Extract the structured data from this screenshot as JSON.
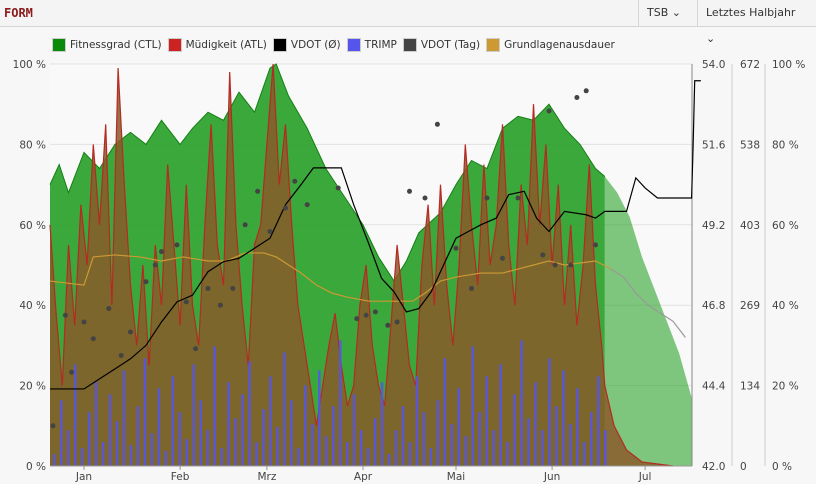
{
  "header": {
    "title": "FORM",
    "tsb_label": "TSB",
    "period_label": "Letztes Halbjahr"
  },
  "colors": {
    "ctl": "#1a9a1a",
    "atl": "#cc2222",
    "vdot_avg": "#000000",
    "trimp": "#5555ee",
    "vdot_day": "#444444",
    "ga": "#cc9933"
  },
  "chart_data": {
    "type": "area",
    "legend": [
      "Fitnessgrad (CTL)",
      "Müdigkeit (ATL)",
      "VDOT (Ø)",
      "TRIMP",
      "VDOT (Tag)",
      "Grundlagenausdauer"
    ],
    "x_unit": "day of year",
    "x_ticks": [
      {
        "label": "Jan",
        "day": 0
      },
      {
        "label": "Feb",
        "day": 31
      },
      {
        "label": "Mrz",
        "day": 59
      },
      {
        "label": "Apr",
        "day": 90
      },
      {
        "label": "Mai",
        "day": 120
      },
      {
        "label": "Jun",
        "day": 151
      },
      {
        "label": "Jul",
        "day": 181
      }
    ],
    "y_left": {
      "ticks": [
        "0 %",
        "20 %",
        "40 %",
        "60 %",
        "80 %",
        "100 %"
      ],
      "range": [
        0,
        100
      ]
    },
    "y_vdot": {
      "ticks": [
        "42.0",
        "44.4",
        "46.8",
        "49.2",
        "51.6",
        "54.0"
      ],
      "range": [
        42,
        54
      ]
    },
    "y_trimp": {
      "ticks": [
        "0",
        "134",
        "269",
        "403",
        "538",
        "672"
      ],
      "range": [
        0,
        672
      ]
    },
    "y_right": {
      "ticks": [
        "0 %",
        "20 %",
        "40 %",
        "60 %",
        "80 %",
        "100 %"
      ]
    },
    "ctl": [
      [
        -11,
        70
      ],
      [
        -8,
        75
      ],
      [
        -5,
        68
      ],
      [
        0,
        78
      ],
      [
        5,
        74
      ],
      [
        10,
        80
      ],
      [
        15,
        83
      ],
      [
        20,
        80
      ],
      [
        25,
        86
      ],
      [
        31,
        80
      ],
      [
        35,
        84
      ],
      [
        40,
        88
      ],
      [
        45,
        86
      ],
      [
        50,
        93
      ],
      [
        55,
        88
      ],
      [
        60,
        99
      ],
      [
        62,
        100
      ],
      [
        66,
        92
      ],
      [
        72,
        84
      ],
      [
        78,
        74
      ],
      [
        84,
        67
      ],
      [
        90,
        60
      ],
      [
        95,
        52
      ],
      [
        100,
        46
      ],
      [
        104,
        51
      ],
      [
        108,
        58
      ],
      [
        115,
        63
      ],
      [
        120,
        70
      ],
      [
        125,
        76
      ],
      [
        130,
        74
      ],
      [
        135,
        84
      ],
      [
        140,
        87
      ],
      [
        145,
        86
      ],
      [
        150,
        90
      ],
      [
        155,
        84
      ],
      [
        160,
        80
      ],
      [
        165,
        74
      ],
      [
        168,
        72
      ]
    ],
    "ctl_forecast": [
      [
        168,
        72
      ],
      [
        172,
        68
      ],
      [
        176,
        62
      ],
      [
        180,
        52
      ],
      [
        184,
        44
      ],
      [
        188,
        36
      ],
      [
        192,
        28
      ],
      [
        196,
        17
      ]
    ],
    "atl": [
      [
        -11,
        60
      ],
      [
        -9,
        38
      ],
      [
        -7,
        20
      ],
      [
        -5,
        55
      ],
      [
        -3,
        35
      ],
      [
        -1,
        65
      ],
      [
        1,
        50
      ],
      [
        3,
        80
      ],
      [
        5,
        60
      ],
      [
        7,
        85
      ],
      [
        9,
        40
      ],
      [
        11,
        99
      ],
      [
        13,
        70
      ],
      [
        15,
        45
      ],
      [
        17,
        30
      ],
      [
        19,
        50
      ],
      [
        21,
        25
      ],
      [
        23,
        55
      ],
      [
        25,
        40
      ],
      [
        27,
        75
      ],
      [
        29,
        55
      ],
      [
        31,
        35
      ],
      [
        33,
        70
      ],
      [
        35,
        40
      ],
      [
        37,
        30
      ],
      [
        39,
        60
      ],
      [
        41,
        85
      ],
      [
        43,
        55
      ],
      [
        45,
        45
      ],
      [
        47,
        98
      ],
      [
        49,
        60
      ],
      [
        51,
        40
      ],
      [
        53,
        25
      ],
      [
        55,
        55
      ],
      [
        57,
        60
      ],
      [
        59,
        80
      ],
      [
        61,
        100
      ],
      [
        63,
        70
      ],
      [
        65,
        85
      ],
      [
        67,
        60
      ],
      [
        69,
        40
      ],
      [
        71,
        30
      ],
      [
        73,
        20
      ],
      [
        75,
        10
      ],
      [
        77,
        20
      ],
      [
        79,
        30
      ],
      [
        81,
        38
      ],
      [
        83,
        25
      ],
      [
        85,
        15
      ],
      [
        87,
        20
      ],
      [
        89,
        40
      ],
      [
        91,
        50
      ],
      [
        93,
        30
      ],
      [
        95,
        20
      ],
      [
        97,
        15
      ],
      [
        99,
        35
      ],
      [
        101,
        55
      ],
      [
        103,
        40
      ],
      [
        105,
        25
      ],
      [
        107,
        20
      ],
      [
        109,
        50
      ],
      [
        111,
        65
      ],
      [
        113,
        40
      ],
      [
        115,
        70
      ],
      [
        117,
        45
      ],
      [
        119,
        30
      ],
      [
        121,
        50
      ],
      [
        123,
        80
      ],
      [
        125,
        60
      ],
      [
        127,
        45
      ],
      [
        129,
        75
      ],
      [
        131,
        50
      ],
      [
        133,
        60
      ],
      [
        135,
        85
      ],
      [
        137,
        55
      ],
      [
        139,
        40
      ],
      [
        141,
        70
      ],
      [
        143,
        55
      ],
      [
        145,
        90
      ],
      [
        147,
        60
      ],
      [
        149,
        80
      ],
      [
        151,
        50
      ],
      [
        153,
        70
      ],
      [
        155,
        40
      ],
      [
        157,
        60
      ],
      [
        159,
        35
      ],
      [
        161,
        50
      ],
      [
        163,
        75
      ],
      [
        165,
        45
      ],
      [
        167,
        30
      ],
      [
        168,
        20
      ],
      [
        171,
        10
      ],
      [
        175,
        4
      ],
      [
        180,
        1
      ],
      [
        190,
        0
      ]
    ],
    "trimp": [
      20,
      110,
      60,
      170,
      30,
      90,
      140,
      40,
      120,
      75,
      160,
      35,
      100,
      180,
      55,
      130,
      25,
      150,
      90,
      45,
      170,
      110,
      60,
      200,
      30,
      140,
      80,
      120,
      175,
      40,
      95,
      150,
      65,
      190,
      110,
      30,
      135,
      70,
      160,
      50,
      100,
      210,
      40,
      120,
      60,
      30,
      80,
      140,
      20,
      60,
      100,
      40,
      150,
      90,
      30,
      110,
      180,
      70,
      130,
      50,
      200,
      90,
      150,
      60,
      170,
      40,
      120,
      210,
      80,
      140,
      60,
      180,
      100,
      160,
      70,
      130,
      40,
      90,
      150,
      60
    ],
    "trimp_start_day": -10,
    "trimp_step_days": 2.25,
    "vdot_avg": [
      [
        -11,
        44.3
      ],
      [
        0,
        44.3
      ],
      [
        5,
        44.6
      ],
      [
        10,
        44.9
      ],
      [
        15,
        45.2
      ],
      [
        20,
        45.6
      ],
      [
        25,
        46.3
      ],
      [
        30,
        46.9
      ],
      [
        35,
        47.1
      ],
      [
        40,
        47.8
      ],
      [
        45,
        48.1
      ],
      [
        50,
        48.2
      ],
      [
        55,
        48.5
      ],
      [
        60,
        48.8
      ],
      [
        65,
        49.8
      ],
      [
        70,
        50.4
      ],
      [
        74,
        50.9
      ],
      [
        78,
        50.9
      ],
      [
        83,
        50.9
      ],
      [
        87,
        49.8
      ],
      [
        92,
        48.6
      ],
      [
        96,
        47.6
      ],
      [
        100,
        47.2
      ],
      [
        104,
        46.6
      ],
      [
        108,
        46.7
      ],
      [
        112,
        47.2
      ],
      [
        116,
        48.0
      ],
      [
        120,
        48.8
      ],
      [
        124,
        49.0
      ],
      [
        128,
        49.2
      ],
      [
        133,
        49.4
      ],
      [
        137,
        50.1
      ],
      [
        142,
        50.2
      ],
      [
        146,
        49.4
      ],
      [
        150,
        49.0
      ],
      [
        155,
        49.6
      ],
      [
        162,
        49.5
      ],
      [
        165,
        49.4
      ],
      [
        168,
        49.6
      ],
      [
        175,
        49.6
      ],
      [
        178,
        50.6
      ],
      [
        181,
        50.3
      ],
      [
        185,
        50.0
      ],
      [
        196,
        50.0
      ],
      [
        196.5,
        51.6
      ],
      [
        197,
        53.5
      ],
      [
        199,
        53.5
      ]
    ],
    "vdot_day": [
      [
        -10,
        43.2
      ],
      [
        -6,
        46.5
      ],
      [
        -4,
        44.8
      ],
      [
        0,
        46.3
      ],
      [
        3,
        45.8
      ],
      [
        8,
        46.7
      ],
      [
        12,
        45.3
      ],
      [
        15,
        46.0
      ],
      [
        20,
        47.5
      ],
      [
        23,
        48.0
      ],
      [
        25,
        48.4
      ],
      [
        30,
        48.6
      ],
      [
        33,
        46.9
      ],
      [
        36,
        45.5
      ],
      [
        40,
        47.3
      ],
      [
        44,
        46.8
      ],
      [
        48,
        47.3
      ],
      [
        52,
        49.2
      ],
      [
        56,
        50.2
      ],
      [
        60,
        49.0
      ],
      [
        65,
        49.7
      ],
      [
        68,
        50.5
      ],
      [
        72,
        49.8
      ],
      [
        82,
        50.3
      ],
      [
        88,
        46.4
      ],
      [
        91,
        46.5
      ],
      [
        94,
        46.6
      ],
      [
        98,
        46.2
      ],
      [
        101,
        46.3
      ],
      [
        105,
        50.2
      ],
      [
        110,
        50.0
      ],
      [
        114,
        52.2
      ],
      [
        120,
        48.5
      ],
      [
        125,
        47.3
      ],
      [
        130,
        50.0
      ],
      [
        135,
        48.2
      ],
      [
        140,
        50.0
      ],
      [
        148,
        48.3
      ],
      [
        152,
        48.0
      ],
      [
        157,
        48.0
      ],
      [
        150,
        52.6
      ],
      [
        159,
        53.0
      ],
      [
        162,
        53.2
      ],
      [
        165,
        48.6
      ]
    ],
    "ga": [
      [
        -11,
        46
      ],
      [
        0,
        45
      ],
      [
        3,
        52
      ],
      [
        10,
        52.5
      ],
      [
        18,
        52
      ],
      [
        25,
        51
      ],
      [
        32,
        52
      ],
      [
        40,
        51
      ],
      [
        46,
        51
      ],
      [
        52,
        53
      ],
      [
        58,
        53
      ],
      [
        62,
        52
      ],
      [
        66,
        50
      ],
      [
        70,
        48
      ],
      [
        75,
        45
      ],
      [
        80,
        43
      ],
      [
        85,
        42
      ],
      [
        92,
        41
      ],
      [
        100,
        41
      ],
      [
        106,
        41
      ],
      [
        110,
        43
      ],
      [
        115,
        46
      ],
      [
        120,
        47
      ],
      [
        128,
        48
      ],
      [
        135,
        48
      ],
      [
        140,
        49
      ],
      [
        145,
        50
      ],
      [
        150,
        51
      ],
      [
        155,
        50
      ],
      [
        165,
        51
      ],
      [
        170,
        49
      ]
    ],
    "ga_forecast": [
      [
        170,
        49
      ],
      [
        174,
        47
      ],
      [
        178,
        43
      ],
      [
        182,
        40
      ],
      [
        186,
        38
      ],
      [
        190,
        36
      ],
      [
        193,
        33
      ],
      [
        194,
        32
      ]
    ]
  }
}
